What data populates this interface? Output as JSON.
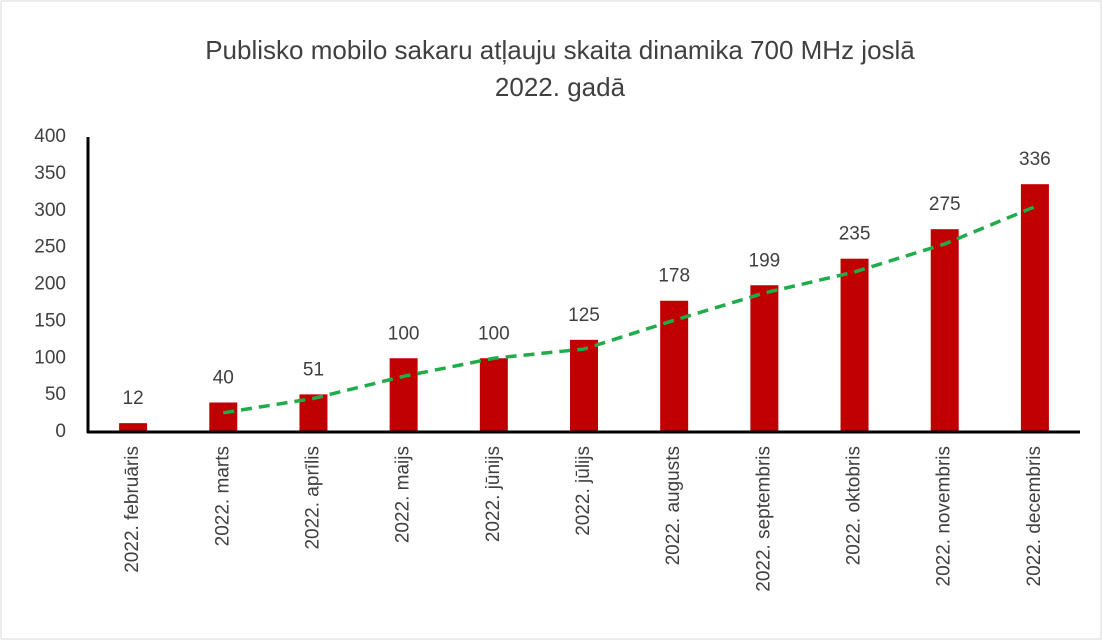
{
  "chart_data": {
    "type": "bar",
    "title": [
      "Publisko mobilo sakaru atļauju skaita dinamika 700 MHz joslā",
      "2022. gadā"
    ],
    "categories": [
      "2022. februāris",
      "2022. marts",
      "2022. aprīlis",
      "2022. maijs",
      "2022. jūnijs",
      "2022. jūlijs",
      "2022. augusts",
      "2022. septembris",
      "2022. oktobris",
      "2022. novembris",
      "2022. decembris"
    ],
    "values": [
      12,
      40,
      51,
      100,
      100,
      125,
      178,
      199,
      235,
      275,
      336
    ],
    "color": "#c00000",
    "trend": {
      "color": "#1fad4b",
      "values": [
        null,
        26,
        45.5,
        75.5,
        100,
        112.5,
        151.5,
        188.5,
        217,
        255,
        305.5
      ]
    },
    "ylim": [
      0,
      400
    ],
    "yticks": [
      0,
      50,
      100,
      150,
      200,
      250,
      300,
      350,
      400
    ],
    "grid": false
  }
}
